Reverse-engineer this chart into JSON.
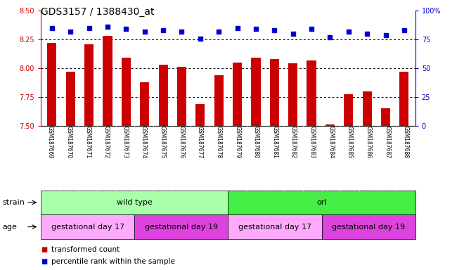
{
  "title": "GDS3157 / 1388430_at",
  "samples": [
    "GSM187669",
    "GSM187670",
    "GSM187671",
    "GSM187672",
    "GSM187673",
    "GSM187674",
    "GSM187675",
    "GSM187676",
    "GSM187677",
    "GSM187678",
    "GSM187679",
    "GSM187680",
    "GSM187681",
    "GSM187682",
    "GSM187683",
    "GSM187684",
    "GSM187685",
    "GSM187686",
    "GSM187687",
    "GSM187688"
  ],
  "bar_values": [
    8.22,
    7.97,
    8.21,
    8.28,
    8.09,
    7.88,
    8.03,
    8.01,
    7.69,
    7.94,
    8.05,
    8.09,
    8.08,
    8.04,
    8.07,
    7.51,
    7.77,
    7.8,
    7.65,
    7.97
  ],
  "percentile_values": [
    85,
    82,
    85,
    86,
    84,
    82,
    83,
    82,
    76,
    82,
    85,
    84,
    83,
    80,
    84,
    77,
    82,
    80,
    79,
    83
  ],
  "ylim_left": [
    7.5,
    8.5
  ],
  "ylim_right": [
    0,
    100
  ],
  "yticks_left": [
    7.5,
    7.75,
    8.0,
    8.25,
    8.5
  ],
  "yticks_right_vals": [
    0,
    25,
    50,
    75,
    100
  ],
  "yticks_right_labels": [
    "0",
    "25",
    "50",
    "75",
    "100%"
  ],
  "bar_color": "#cc0000",
  "dot_color": "#0000cc",
  "dot_size": 14,
  "bar_width": 0.5,
  "strain_groups": [
    {
      "label": "wild type",
      "start": 0,
      "end": 10,
      "color": "#aaffaa"
    },
    {
      "label": "orl",
      "start": 10,
      "end": 20,
      "color": "#44ee44"
    }
  ],
  "age_groups": [
    {
      "label": "gestational day 17",
      "start": 0,
      "end": 5,
      "color": "#ffaaff"
    },
    {
      "label": "gestational day 19",
      "start": 5,
      "end": 10,
      "color": "#dd44dd"
    },
    {
      "label": "gestational day 17",
      "start": 10,
      "end": 15,
      "color": "#ffaaff"
    },
    {
      "label": "gestational day 19",
      "start": 15,
      "end": 20,
      "color": "#dd44dd"
    }
  ],
  "grid_lines": [
    7.75,
    8.0,
    8.25
  ],
  "tick_bg_color": "#cccccc",
  "chart_bg_color": "#ffffff",
  "left_axis_color": "#cc0000",
  "right_axis_color": "#0000cc",
  "legend_red_label": "transformed count",
  "legend_blue_label": "percentile rank within the sample",
  "title_fontsize": 10,
  "tick_fontsize": 7,
  "label_fontsize": 8,
  "sample_fontsize": 5.5
}
